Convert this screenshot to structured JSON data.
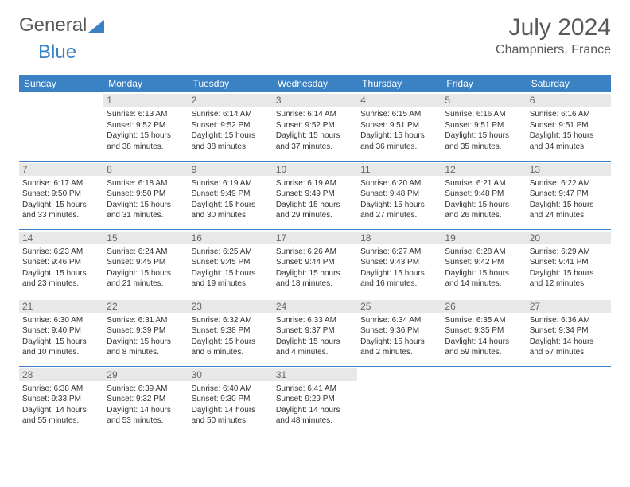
{
  "brand": {
    "part1": "General",
    "part2": "Blue"
  },
  "title": "July 2024",
  "location": "Champniers, France",
  "colors": {
    "header_bg": "#3b82c4",
    "header_text": "#ffffff",
    "daynum_bg": "#e8e8e8",
    "text": "#333333",
    "border": "#3b82c4"
  },
  "weekdays": [
    "Sunday",
    "Monday",
    "Tuesday",
    "Wednesday",
    "Thursday",
    "Friday",
    "Saturday"
  ],
  "firstDayOffset": 1,
  "days": [
    {
      "n": 1,
      "sunrise": "6:13 AM",
      "sunset": "9:52 PM",
      "daylight": "15 hours and 38 minutes."
    },
    {
      "n": 2,
      "sunrise": "6:14 AM",
      "sunset": "9:52 PM",
      "daylight": "15 hours and 38 minutes."
    },
    {
      "n": 3,
      "sunrise": "6:14 AM",
      "sunset": "9:52 PM",
      "daylight": "15 hours and 37 minutes."
    },
    {
      "n": 4,
      "sunrise": "6:15 AM",
      "sunset": "9:51 PM",
      "daylight": "15 hours and 36 minutes."
    },
    {
      "n": 5,
      "sunrise": "6:16 AM",
      "sunset": "9:51 PM",
      "daylight": "15 hours and 35 minutes."
    },
    {
      "n": 6,
      "sunrise": "6:16 AM",
      "sunset": "9:51 PM",
      "daylight": "15 hours and 34 minutes."
    },
    {
      "n": 7,
      "sunrise": "6:17 AM",
      "sunset": "9:50 PM",
      "daylight": "15 hours and 33 minutes."
    },
    {
      "n": 8,
      "sunrise": "6:18 AM",
      "sunset": "9:50 PM",
      "daylight": "15 hours and 31 minutes."
    },
    {
      "n": 9,
      "sunrise": "6:19 AM",
      "sunset": "9:49 PM",
      "daylight": "15 hours and 30 minutes."
    },
    {
      "n": 10,
      "sunrise": "6:19 AM",
      "sunset": "9:49 PM",
      "daylight": "15 hours and 29 minutes."
    },
    {
      "n": 11,
      "sunrise": "6:20 AM",
      "sunset": "9:48 PM",
      "daylight": "15 hours and 27 minutes."
    },
    {
      "n": 12,
      "sunrise": "6:21 AM",
      "sunset": "9:48 PM",
      "daylight": "15 hours and 26 minutes."
    },
    {
      "n": 13,
      "sunrise": "6:22 AM",
      "sunset": "9:47 PM",
      "daylight": "15 hours and 24 minutes."
    },
    {
      "n": 14,
      "sunrise": "6:23 AM",
      "sunset": "9:46 PM",
      "daylight": "15 hours and 23 minutes."
    },
    {
      "n": 15,
      "sunrise": "6:24 AM",
      "sunset": "9:45 PM",
      "daylight": "15 hours and 21 minutes."
    },
    {
      "n": 16,
      "sunrise": "6:25 AM",
      "sunset": "9:45 PM",
      "daylight": "15 hours and 19 minutes."
    },
    {
      "n": 17,
      "sunrise": "6:26 AM",
      "sunset": "9:44 PM",
      "daylight": "15 hours and 18 minutes."
    },
    {
      "n": 18,
      "sunrise": "6:27 AM",
      "sunset": "9:43 PM",
      "daylight": "15 hours and 16 minutes."
    },
    {
      "n": 19,
      "sunrise": "6:28 AM",
      "sunset": "9:42 PM",
      "daylight": "15 hours and 14 minutes."
    },
    {
      "n": 20,
      "sunrise": "6:29 AM",
      "sunset": "9:41 PM",
      "daylight": "15 hours and 12 minutes."
    },
    {
      "n": 21,
      "sunrise": "6:30 AM",
      "sunset": "9:40 PM",
      "daylight": "15 hours and 10 minutes."
    },
    {
      "n": 22,
      "sunrise": "6:31 AM",
      "sunset": "9:39 PM",
      "daylight": "15 hours and 8 minutes."
    },
    {
      "n": 23,
      "sunrise": "6:32 AM",
      "sunset": "9:38 PM",
      "daylight": "15 hours and 6 minutes."
    },
    {
      "n": 24,
      "sunrise": "6:33 AM",
      "sunset": "9:37 PM",
      "daylight": "15 hours and 4 minutes."
    },
    {
      "n": 25,
      "sunrise": "6:34 AM",
      "sunset": "9:36 PM",
      "daylight": "15 hours and 2 minutes."
    },
    {
      "n": 26,
      "sunrise": "6:35 AM",
      "sunset": "9:35 PM",
      "daylight": "14 hours and 59 minutes."
    },
    {
      "n": 27,
      "sunrise": "6:36 AM",
      "sunset": "9:34 PM",
      "daylight": "14 hours and 57 minutes."
    },
    {
      "n": 28,
      "sunrise": "6:38 AM",
      "sunset": "9:33 PM",
      "daylight": "14 hours and 55 minutes."
    },
    {
      "n": 29,
      "sunrise": "6:39 AM",
      "sunset": "9:32 PM",
      "daylight": "14 hours and 53 minutes."
    },
    {
      "n": 30,
      "sunrise": "6:40 AM",
      "sunset": "9:30 PM",
      "daylight": "14 hours and 50 minutes."
    },
    {
      "n": 31,
      "sunrise": "6:41 AM",
      "sunset": "9:29 PM",
      "daylight": "14 hours and 48 minutes."
    }
  ],
  "labels": {
    "sunrise": "Sunrise:",
    "sunset": "Sunset:",
    "daylight": "Daylight:"
  }
}
